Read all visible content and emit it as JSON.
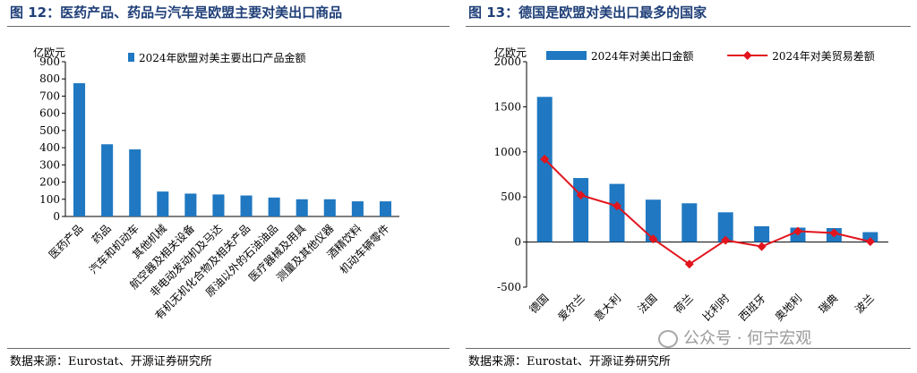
{
  "left": {
    "title": "图 12：医药产品、药品与汽车是欧盟主要对美出口商品",
    "source": "数据来源：Eurostat、开源证券研究所"
  },
  "right": {
    "title": "图 13：德国是欧盟对美出口最多的国家",
    "source": "数据来源：Eurostat、开源证券研究所"
  },
  "watermark": {
    "text": "公众号 · 何宁宏观",
    "icon": "wechat-icon"
  },
  "colors": {
    "bar": "#1f78c1",
    "line": "#e2141d",
    "title": "#1f3f78"
  },
  "chart_data": [
    {
      "type": "bar",
      "ylabel": "亿欧元",
      "ylim": [
        0,
        900
      ],
      "yticks": [
        0,
        100,
        200,
        300,
        400,
        500,
        600,
        700,
        800,
        900
      ],
      "legend_position": "top",
      "categories": [
        "医药产品",
        "药品",
        "汽车和机动车",
        "其他机械",
        "航空器及相关设备",
        "非电动发动机及马达",
        "有机无机化合物及相关产品",
        "原油以外的石油油品",
        "医疗器械及用具",
        "测量及其他仪器",
        "酒精饮料",
        "机动车辆零件"
      ],
      "series": [
        {
          "name": "2024年欧盟对美主要出口产品金额",
          "values": [
            775,
            420,
            390,
            145,
            133,
            128,
            122,
            110,
            100,
            100,
            88,
            88
          ]
        }
      ]
    },
    {
      "type": "bar+line",
      "ylabel": "亿欧元",
      "ylim": [
        -500,
        2000
      ],
      "yticks": [
        -500,
        0,
        500,
        1000,
        1500,
        2000
      ],
      "legend_position": "top",
      "categories": [
        "德国",
        "爱尔兰",
        "意大利",
        "法国",
        "荷兰",
        "比利时",
        "西班牙",
        "奥地利",
        "瑞典",
        "波兰"
      ],
      "series": [
        {
          "name": "2024年对美出口金额",
          "type": "bar",
          "values": [
            1610,
            710,
            645,
            470,
            430,
            330,
            175,
            160,
            155,
            110
          ]
        },
        {
          "name": "2024年对美贸易差额",
          "type": "line",
          "values": [
            920,
            520,
            400,
            35,
            -245,
            20,
            -50,
            120,
            100,
            5
          ]
        }
      ]
    }
  ]
}
